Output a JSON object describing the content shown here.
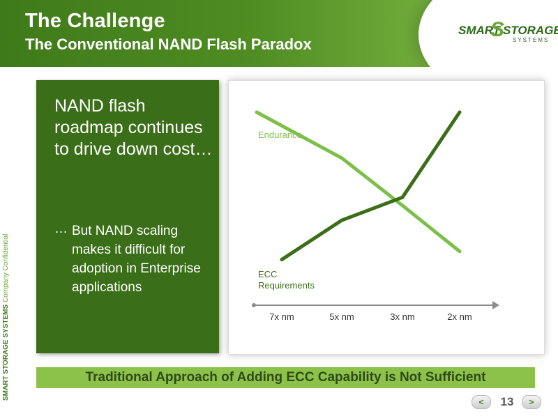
{
  "header": {
    "title": "The Challenge",
    "subtitle": "The Conventional NAND Flash Paradox"
  },
  "logo": {
    "word_1": "SMART",
    "mark": "S",
    "word_2": "STORAGE",
    "sub": "SYSTEMS"
  },
  "sidebar": {
    "company_bold": "SMART STORAGE SYSTEMS",
    "confidential": "Company Confidential"
  },
  "left_panel": {
    "main_text": "NAND flash roadmap continues to drive down cost…",
    "ellipsis": "…",
    "sub_text": "But NAND scaling makes it difficult for adoption in Enterprise applications"
  },
  "chart_data": {
    "type": "line",
    "x": [
      "7x nm",
      "5x nm",
      "3x nm",
      "2x nm"
    ],
    "series": [
      {
        "name": "Endurance",
        "values": [
          100,
          72,
          43,
          15
        ],
        "color": "#7cbf4a"
      },
      {
        "name": "ECC Requirements",
        "values": [
          10,
          34,
          48,
          100
        ],
        "color": "#3a6e18"
      }
    ],
    "series_labels": [
      "Endurance",
      "ECC",
      "Requirements"
    ],
    "ylim": [
      0,
      100
    ],
    "axis_color": "#8c8c8c",
    "grid": false
  },
  "bottom_banner": "Traditional Approach of Adding ECC Capability is Not Sufficient",
  "nav": {
    "prev": "<",
    "page": "13",
    "next": ">"
  },
  "colors": {
    "brand_dark": "#3a6e18",
    "brand_light": "#8cc24a"
  }
}
